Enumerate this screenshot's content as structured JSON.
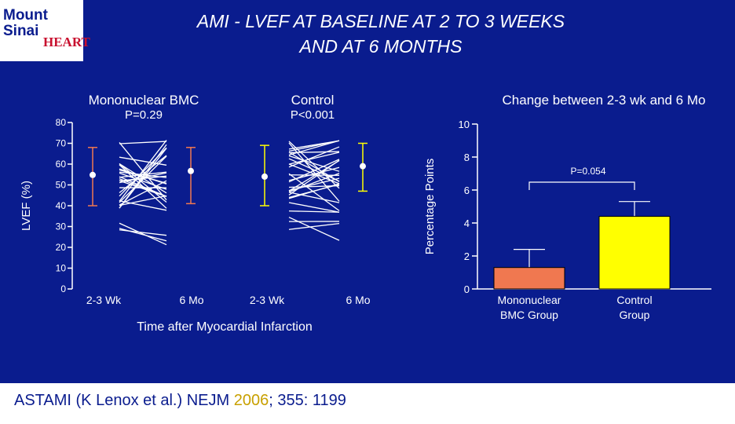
{
  "header": {
    "title_line1": "AMI  -   LVEF AT BASELINE AT 2 TO 3 WEEKS",
    "title_line2": "AND AT 6 MONTHS",
    "logo_mount": "Mount",
    "logo_sinai": "Sinai",
    "logo_heart": "HEART"
  },
  "colors": {
    "background": "#0a1c8e",
    "bmc": "#f07850",
    "control": "#ffff00",
    "text": "#ffffff"
  },
  "chart_data": [
    {
      "type": "line",
      "ylabel": "LVEF (%)",
      "xlabel": "Time after Myocardial Infarction",
      "ylim": [
        0,
        80
      ],
      "yticks": [
        0,
        10,
        20,
        30,
        40,
        50,
        60,
        70,
        80
      ],
      "groups": [
        {
          "name": "Mononuclear BMC",
          "pvalue": "P=0.29",
          "x_labels": [
            "2-3 Wk",
            "6 Mo"
          ],
          "mean": [
            54.8,
            56.7
          ],
          "error_low": [
            40,
            41
          ],
          "error_high": [
            68,
            68
          ],
          "color": "#f07850"
        },
        {
          "name": "Control",
          "pvalue": "P<0.001",
          "x_labels": [
            "2-3 Wk",
            "6 Mo"
          ],
          "mean": [
            54,
            59
          ],
          "error_low": [
            40,
            47
          ],
          "error_high": [
            69,
            70
          ],
          "color": "#ffff00"
        }
      ]
    },
    {
      "type": "bar",
      "title": "Change between 2-3 wk and 6 Mo",
      "ylabel": "Percentage Points",
      "ylim": [
        0,
        10
      ],
      "yticks": [
        0,
        2,
        4,
        6,
        8,
        10
      ],
      "categories": [
        "Mononuclear BMC Group",
        "Control Group"
      ],
      "category_lines": [
        [
          "Mononuclear",
          "BMC Group"
        ],
        [
          "Control",
          "Group"
        ]
      ],
      "values": [
        1.3,
        4.4
      ],
      "errors": [
        2.4,
        5.3
      ],
      "colors": [
        "#f07850",
        "#ffff00"
      ],
      "annotation": "P=0.054"
    }
  ],
  "reference": {
    "author": "ASTAMI",
    "rest": " (K Lenox et al.) NEJM ",
    "year": "2006",
    "tail": "; 355: 1199"
  }
}
